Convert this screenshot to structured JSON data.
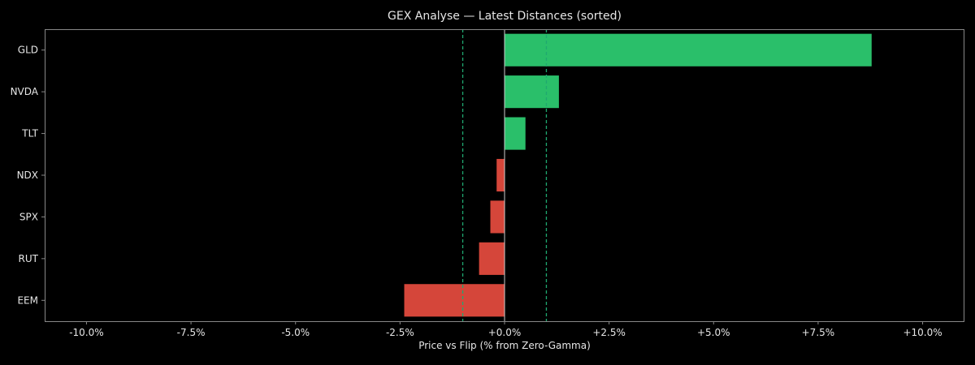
{
  "chart_data": {
    "type": "bar",
    "orientation": "horizontal",
    "title": "GEX Analyse — Latest Distances (sorted)",
    "xlabel": "Price vs Flip (% from Zero-Gamma)",
    "ylabel": "",
    "xlim": [
      -11,
      11
    ],
    "xticks": [
      -10,
      -7.5,
      -5,
      -2.5,
      0,
      2.5,
      5,
      7.5,
      10
    ],
    "xtick_labels": [
      "-10.0%",
      "-7.5%",
      "-5.0%",
      "-2.5%",
      "+0.0%",
      "+2.5%",
      "+5.0%",
      "+7.5%",
      "+10.0%"
    ],
    "categories": [
      "GLD",
      "NVDA",
      "TLT",
      "NDX",
      "SPX",
      "RUT",
      "EEM"
    ],
    "values": [
      8.78,
      1.3,
      0.5,
      -0.19,
      -0.34,
      -0.61,
      -2.4
    ],
    "reference_lines": [
      -1.0,
      1.0
    ],
    "grid": false,
    "colors": {
      "positive": "#2abf6a",
      "negative": "#d5463a",
      "reference": "#1fa870",
      "zero_line": "#cccccc",
      "background": "#000000",
      "axes": "#888888"
    }
  }
}
